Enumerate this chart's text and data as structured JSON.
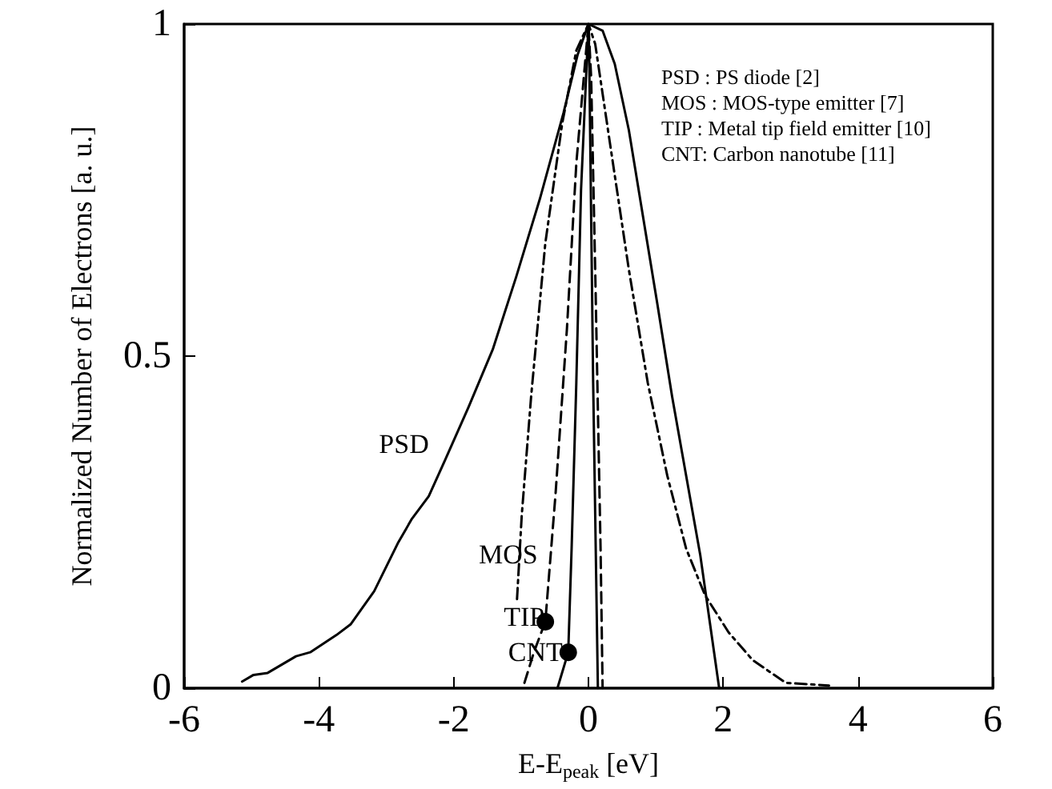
{
  "chart_data": {
    "type": "line",
    "xlabel": "E-E$_{peak}$ [eV]",
    "ylabel": "Normalized Number of Electrons [a. u.]",
    "xlim": [
      -6,
      6
    ],
    "xticks": [
      -6,
      -4,
      -2,
      0,
      2,
      4,
      6
    ],
    "ylim": [
      0,
      1
    ],
    "yticks": [
      0,
      0.5,
      1
    ],
    "grid": false,
    "legend": false,
    "marker": "none",
    "annotations": [
      "PSD : PS diode [2]",
      "MOS : MOS-type emitter [7]",
      "TIP : Metal tip field emitter [10]",
      "CNT: Carbon nanotube [11]"
    ],
    "series": [
      {
        "name": "PSD",
        "color": "#000000",
        "line_style": "solid",
        "x": [
          -5.14,
          -4.97,
          -4.76,
          -4.34,
          -4.13,
          -3.74,
          -3.53,
          -3.18,
          -2.83,
          -2.62,
          -2.37,
          -2.13,
          -1.78,
          -1.42,
          -1.07,
          -0.72,
          -0.37,
          -0.16,
          0,
          0.21,
          0.39,
          0.6,
          0.81,
          1.02,
          1.24,
          1.45,
          1.66,
          1.8,
          1.94
        ],
        "values": [
          0.01,
          0.02,
          0.023,
          0.048,
          0.054,
          0.08,
          0.096,
          0.146,
          0.218,
          0.255,
          0.289,
          0.343,
          0.423,
          0.51,
          0.62,
          0.737,
          0.866,
          0.954,
          1,
          0.99,
          0.94,
          0.84,
          0.71,
          0.58,
          0.44,
          0.32,
          0.2,
          0.1,
          0
        ]
      },
      {
        "name": "MOS",
        "color": "#000000",
        "line_style": "dashed",
        "x": [
          -1.06,
          -0.99,
          -0.85,
          -0.64,
          -0.39,
          -0.18,
          0,
          0.1,
          0.32,
          0.6,
          0.88,
          1.17,
          1.45,
          1.73,
          2.08,
          2.44,
          2.93,
          3.57
        ],
        "values": [
          0.134,
          0.26,
          0.44,
          0.67,
          0.85,
          0.96,
          1,
          0.97,
          0.82,
          0.63,
          0.46,
          0.32,
          0.21,
          0.14,
          0.084,
          0.042,
          0.008,
          0.004
        ]
      },
      {
        "name": "TIP",
        "color": "#000000",
        "line_style": "dashed",
        "x": [
          -0.95,
          -0.81,
          -0.64,
          -0.49,
          -0.32,
          -0.18,
          0,
          0.04,
          0.1,
          0.18,
          0.21
        ],
        "values": [
          0.008,
          0.054,
          0.1,
          0.29,
          0.54,
          0.79,
          1,
          0.92,
          0.63,
          0.21,
          0
        ]
      },
      {
        "name": "CNT",
        "color": "#000000",
        "line_style": "solid",
        "x": [
          -0.46,
          -0.3,
          -0.25,
          -0.18,
          -0.11,
          0,
          0.01,
          0.07,
          0.14
        ],
        "values": [
          0,
          0.054,
          0.21,
          0.46,
          0.75,
          1,
          0.96,
          0.46,
          0
        ]
      }
    ]
  }
}
